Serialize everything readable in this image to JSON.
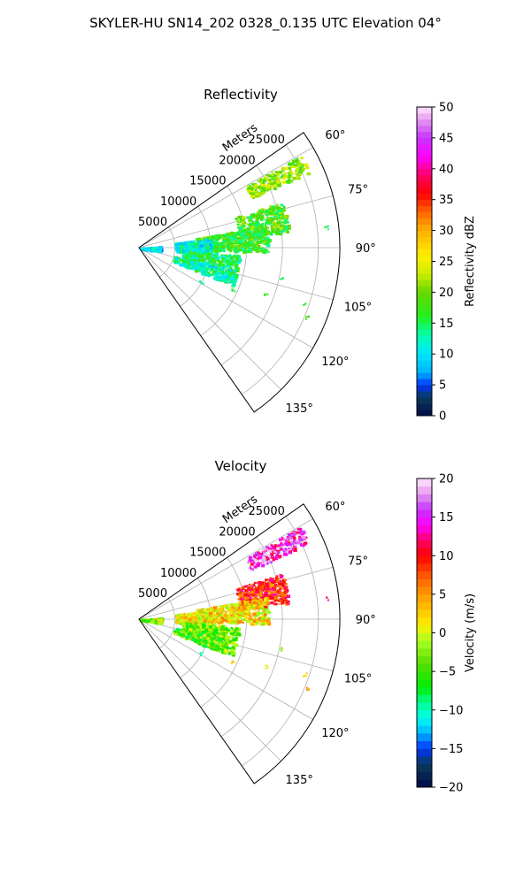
{
  "figure": {
    "title": "SKYLER-HU  SN14_202  0328_0.135 UTC Elevation 04°"
  },
  "chart_data": [
    {
      "type": "heatmap",
      "title": "Reflectivity",
      "radial_label": "Meters",
      "radial_ticks": [
        5000,
        10000,
        15000,
        20000,
        25000
      ],
      "radial_tick_labels": [
        "5000",
        "10000",
        "15000",
        "20000",
        "25000"
      ],
      "angle_ticks": [
        60,
        75,
        90,
        105,
        120,
        135
      ],
      "angle_tick_labels": [
        "60°",
        "75°",
        "90°",
        "105°",
        "120°",
        "135°"
      ],
      "theta_range_deg": [
        55,
        145
      ],
      "r_max": 28000,
      "colorbar": {
        "label": "Reflectivity dBZ",
        "range": [
          0,
          50
        ],
        "ticks": [
          0,
          5,
          10,
          15,
          20,
          25,
          30,
          35,
          40,
          45,
          50
        ],
        "tick_labels": [
          "0",
          "5",
          "10",
          "15",
          "20",
          "25",
          "30",
          "35",
          "40",
          "45",
          "50"
        ]
      },
      "echo_regions": [
        {
          "az": [
            60,
            66
          ],
          "r": [
            17000,
            26000
          ],
          "value": 21
        },
        {
          "az": [
            72,
            84
          ],
          "r": [
            14000,
            21000
          ],
          "value": 18
        },
        {
          "az": [
            80,
            92
          ],
          "r": [
            8000,
            18000
          ],
          "value": 17
        },
        {
          "az": [
            82,
            95
          ],
          "r": [
            5000,
            10000
          ],
          "value": 11
        },
        {
          "az": [
            94,
            103
          ],
          "r": [
            6000,
            14000
          ],
          "value": 15
        },
        {
          "az": [
            103,
            112
          ],
          "r": [
            5000,
            14000
          ],
          "value": 13
        },
        {
          "az": [
            85,
            100
          ],
          "r": [
            0,
            3000
          ],
          "value": 10
        }
      ],
      "scatter_points": [
        {
          "az": 78,
          "r": 17500,
          "value": 15
        },
        {
          "az": 83,
          "r": 26000,
          "value": 15
        },
        {
          "az": 101,
          "r": 20000,
          "value": 15
        },
        {
          "az": 110,
          "r": 18500,
          "value": 17
        },
        {
          "az": 108,
          "r": 24000,
          "value": 15
        },
        {
          "az": 114,
          "r": 14000,
          "value": 15
        },
        {
          "az": 118,
          "r": 9500,
          "value": 13
        },
        {
          "az": 112,
          "r": 25000,
          "value": 18
        }
      ]
    },
    {
      "type": "heatmap",
      "title": "Velocity",
      "radial_label": "Meters",
      "radial_ticks": [
        5000,
        10000,
        15000,
        20000,
        25000
      ],
      "radial_tick_labels": [
        "5000",
        "10000",
        "15000",
        "20000",
        "25000"
      ],
      "angle_ticks": [
        60,
        75,
        90,
        105,
        120,
        135
      ],
      "angle_tick_labels": [
        "60°",
        "75°",
        "90°",
        "105°",
        "120°",
        "135°"
      ],
      "theta_range_deg": [
        55,
        145
      ],
      "r_max": 28000,
      "colorbar": {
        "label": "Velocity (m/s)",
        "range": [
          -20,
          20
        ],
        "ticks": [
          -20,
          -15,
          -10,
          -5,
          0,
          5,
          10,
          15,
          20
        ],
        "tick_labels": [
          "−20",
          "−15",
          "−10",
          "−5",
          "0",
          "5",
          "10",
          "15",
          "20"
        ]
      },
      "echo_regions": [
        {
          "az": [
            60,
            66
          ],
          "r": [
            17000,
            26000
          ],
          "value": 15
        },
        {
          "az": [
            72,
            84
          ],
          "r": [
            14000,
            21000
          ],
          "value": 9
        },
        {
          "az": [
            80,
            92
          ],
          "r": [
            8000,
            18000
          ],
          "value": 2
        },
        {
          "az": [
            82,
            95
          ],
          "r": [
            5000,
            10000
          ],
          "value": 1
        },
        {
          "az": [
            94,
            103
          ],
          "r": [
            6000,
            14000
          ],
          "value": -3
        },
        {
          "az": [
            103,
            112
          ],
          "r": [
            5000,
            14000
          ],
          "value": -4
        },
        {
          "az": [
            85,
            100
          ],
          "r": [
            0,
            3000
          ],
          "value": -2
        }
      ],
      "scatter_points": [
        {
          "az": 78,
          "r": 17500,
          "value": 10
        },
        {
          "az": 83,
          "r": 26000,
          "value": 12
        },
        {
          "az": 101,
          "r": 20000,
          "value": -2
        },
        {
          "az": 110,
          "r": 18500,
          "value": 1
        },
        {
          "az": 108,
          "r": 24000,
          "value": 2
        },
        {
          "az": 114,
          "r": 14000,
          "value": 3
        },
        {
          "az": 118,
          "r": 9500,
          "value": -10
        },
        {
          "az": 112,
          "r": 25000,
          "value": 5
        }
      ]
    }
  ]
}
